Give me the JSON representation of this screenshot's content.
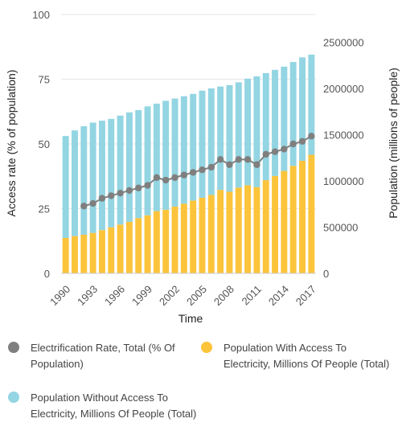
{
  "chart_data": {
    "type": "bar",
    "xlabel": "Time",
    "ylabel": "Access rate (% of population)",
    "y2label": "Population (millions of people)",
    "ylim": [
      0,
      100
    ],
    "y2lim": [
      0,
      2800000
    ],
    "yticks": [
      "0",
      "25",
      "50",
      "75",
      "100"
    ],
    "y2ticks": [
      "0",
      "500000",
      "1000000",
      "1500000",
      "2000000",
      "2500000"
    ],
    "categories": [
      "1990",
      "1991",
      "1992",
      "1993",
      "1994",
      "1995",
      "1996",
      "1997",
      "1998",
      "1999",
      "2000",
      "2001",
      "2002",
      "2003",
      "2004",
      "2005",
      "2006",
      "2007",
      "2008",
      "2009",
      "2010",
      "2011",
      "2012",
      "2013",
      "2014",
      "2015",
      "2016",
      "2017"
    ],
    "xticks": [
      "1990",
      "1993",
      "1996",
      "1999",
      "2002",
      "2005",
      "2008",
      "2011",
      "2014",
      "2017"
    ],
    "stacked": true,
    "colors": {
      "with_access": "#fcc43b",
      "without_access": "#93d5e2",
      "rate": "#7f7f7f"
    },
    "series": [
      {
        "name": "Population With Access To Electricity, Millions Of People (Total)",
        "axis": "right",
        "values": [
          383000,
          403000,
          418000,
          438000,
          468000,
          498000,
          528000,
          558000,
          598000,
          628000,
          673000,
          688000,
          723000,
          753000,
          788000,
          818000,
          848000,
          903000,
          883000,
          928000,
          953000,
          933000,
          1008000,
          1053000,
          1108000,
          1163000,
          1218000,
          1283000
        ]
      },
      {
        "name": "Population Without Access To Electricity, Millions Of People (Total)",
        "axis": "right",
        "values": [
          1103000,
          1143000,
          1173000,
          1193000,
          1183000,
          1173000,
          1178000,
          1183000,
          1168000,
          1178000,
          1163000,
          1178000,
          1168000,
          1163000,
          1153000,
          1158000,
          1153000,
          1118000,
          1153000,
          1138000,
          1153000,
          1198000,
          1158000,
          1148000,
          1128000,
          1123000,
          1118000,
          1083000
        ]
      },
      {
        "name": "Electrification Rate, Total (% Of Population)",
        "type": "line",
        "axis": "left",
        "x": [
          "1992",
          "1993",
          "1994",
          "1995",
          "1996",
          "1997",
          "1998",
          "1999",
          "2000",
          "2001",
          "2002",
          "2003",
          "2004",
          "2005",
          "2006",
          "2007",
          "2008",
          "2009",
          "2010",
          "2011",
          "2012",
          "2013",
          "2014",
          "2015",
          "2016",
          "2017"
        ],
        "values": [
          26,
          27,
          29,
          30,
          31,
          32,
          33,
          34,
          37,
          36,
          37,
          38,
          39,
          40,
          41,
          44,
          42,
          44,
          44,
          42,
          46,
          47,
          48,
          50,
          51,
          53
        ]
      }
    ],
    "legend_position": "bottom",
    "grid": true
  },
  "legend": {
    "rate": "Electrification Rate, Total (% Of Population)",
    "with_access": "Population With Access To Electricity, Millions Of People (Total)",
    "without_access": "Population Without Access To Electricity, Millions Of People (Total)"
  }
}
